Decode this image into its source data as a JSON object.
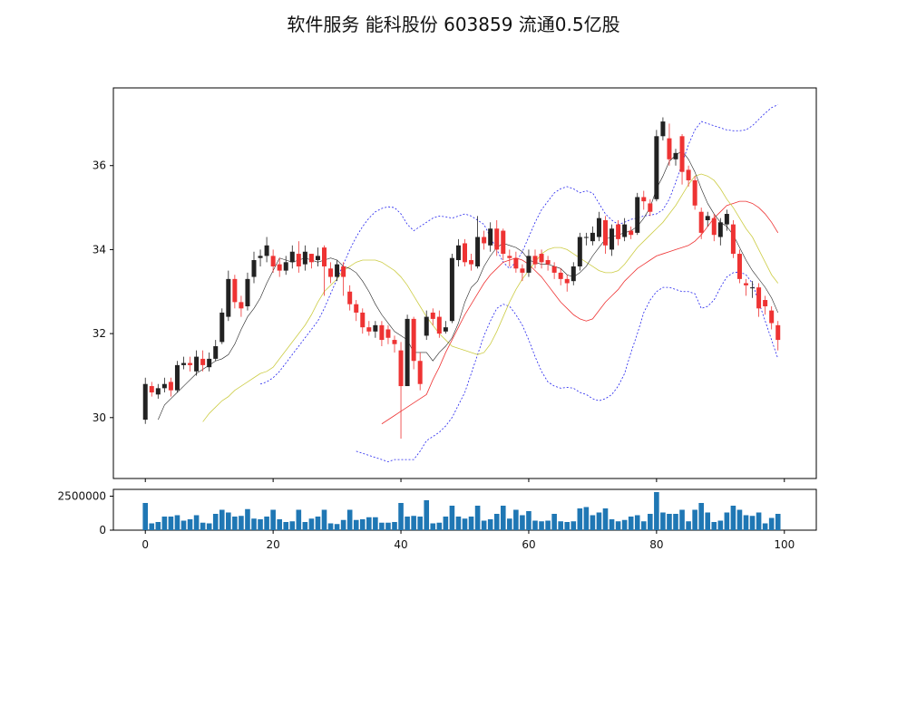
{
  "chart_data": [
    {
      "type": "candlestick",
      "panel": "price",
      "title": "软件服务 能科股份 603859 流通0.5亿股",
      "xlim": [
        -5,
        105
      ],
      "ylim": [
        28.55,
        37.85
      ],
      "x_ticks": [
        0,
        20,
        40,
        60,
        80,
        100
      ],
      "y_ticks": [
        30,
        32,
        34,
        36
      ],
      "colors": {
        "up": "#222222",
        "down": "#ee3333",
        "ma5": "#222222",
        "ma10": "#cccc44",
        "ma20": "#ee3333",
        "boll": "#2222ee"
      },
      "ohlc": [
        [
          0,
          29.95,
          30.8,
          30.95,
          29.85
        ],
        [
          1,
          30.75,
          30.6,
          30.85,
          30.5
        ],
        [
          2,
          30.55,
          30.7,
          30.8,
          30.45
        ],
        [
          3,
          30.7,
          30.8,
          30.95,
          30.6
        ],
        [
          4,
          30.85,
          30.65,
          30.95,
          30.5
        ],
        [
          5,
          30.65,
          31.25,
          31.35,
          30.6
        ],
        [
          6,
          31.25,
          31.3,
          31.45,
          31.15
        ],
        [
          7,
          31.3,
          31.25,
          31.45,
          31.1
        ],
        [
          8,
          31.1,
          31.45,
          31.6,
          31.0
        ],
        [
          9,
          31.4,
          31.25,
          31.6,
          31.1
        ],
        [
          10,
          31.2,
          31.4,
          31.55,
          31.1
        ],
        [
          11,
          31.4,
          31.7,
          31.85,
          31.35
        ],
        [
          12,
          31.8,
          32.5,
          32.6,
          31.75
        ],
        [
          13,
          32.4,
          33.3,
          33.5,
          32.3
        ],
        [
          14,
          33.3,
          32.75,
          33.4,
          32.6
        ],
        [
          15,
          32.75,
          32.6,
          32.9,
          32.4
        ],
        [
          16,
          32.65,
          33.3,
          33.45,
          32.55
        ],
        [
          17,
          33.35,
          33.75,
          33.95,
          33.2
        ],
        [
          18,
          33.8,
          33.85,
          34.0,
          33.6
        ],
        [
          19,
          33.85,
          34.1,
          34.3,
          33.7
        ],
        [
          20,
          33.85,
          33.6,
          34.0,
          33.45
        ],
        [
          21,
          33.65,
          33.5,
          33.8,
          33.35
        ],
        [
          22,
          33.5,
          33.7,
          33.85,
          33.4
        ],
        [
          23,
          33.7,
          33.95,
          34.1,
          33.55
        ],
        [
          24,
          33.9,
          33.6,
          34.2,
          33.45
        ],
        [
          25,
          33.65,
          33.95,
          34.1,
          33.5
        ],
        [
          26,
          33.9,
          33.7,
          33.9,
          33.55
        ],
        [
          27,
          33.75,
          33.85,
          34.05,
          33.6
        ],
        [
          28,
          34.05,
          33.6,
          34.1,
          32.9
        ],
        [
          29,
          33.55,
          33.35,
          33.7,
          33.2
        ],
        [
          30,
          33.35,
          33.65,
          33.75,
          33.25
        ],
        [
          31,
          33.6,
          33.35,
          33.7,
          32.9
        ],
        [
          32,
          33.0,
          32.7,
          33.15,
          32.55
        ],
        [
          33,
          32.7,
          32.5,
          32.8,
          32.3
        ],
        [
          34,
          32.5,
          32.15,
          32.6,
          32.0
        ],
        [
          35,
          32.15,
          32.05,
          32.3,
          31.95
        ],
        [
          36,
          32.05,
          32.2,
          32.3,
          31.9
        ],
        [
          37,
          32.2,
          31.85,
          32.3,
          31.7
        ],
        [
          38,
          32.1,
          31.9,
          32.2,
          31.75
        ],
        [
          39,
          31.85,
          31.75,
          31.95,
          31.55
        ],
        [
          40,
          31.6,
          30.75,
          31.8,
          29.5
        ],
        [
          41,
          30.75,
          32.35,
          32.45,
          30.75
        ],
        [
          42,
          32.35,
          31.35,
          32.4,
          31.15
        ],
        [
          43,
          31.35,
          30.8,
          31.55,
          30.65
        ],
        [
          44,
          31.95,
          32.4,
          32.55,
          31.85
        ],
        [
          45,
          32.5,
          32.35,
          32.6,
          32.2
        ],
        [
          46,
          32.4,
          32.0,
          32.55,
          31.9
        ],
        [
          47,
          32.05,
          32.15,
          32.3,
          32.0
        ],
        [
          48,
          32.3,
          33.8,
          33.9,
          32.25
        ],
        [
          49,
          33.75,
          34.1,
          34.25,
          33.6
        ],
        [
          50,
          34.15,
          33.7,
          34.25,
          33.6
        ],
        [
          51,
          33.75,
          33.65,
          33.9,
          33.5
        ],
        [
          52,
          33.6,
          34.3,
          34.8,
          33.55
        ],
        [
          53,
          34.3,
          34.15,
          34.45,
          34.0
        ],
        [
          54,
          34.1,
          34.5,
          34.65,
          33.95
        ],
        [
          55,
          34.5,
          34.0,
          34.7,
          33.85
        ],
        [
          56,
          34.45,
          33.9,
          34.5,
          33.75
        ],
        [
          57,
          33.85,
          33.8,
          34.0,
          33.6
        ],
        [
          58,
          33.8,
          33.55,
          33.95,
          33.45
        ],
        [
          59,
          33.55,
          33.45,
          33.65,
          33.25
        ],
        [
          60,
          33.45,
          33.85,
          34.0,
          33.35
        ],
        [
          61,
          33.85,
          33.65,
          34.0,
          33.55
        ],
        [
          62,
          33.9,
          33.7,
          34.0,
          33.55
        ],
        [
          63,
          33.75,
          33.65,
          33.85,
          33.5
        ],
        [
          64,
          33.6,
          33.45,
          33.7,
          33.3
        ],
        [
          65,
          33.45,
          33.3,
          33.55,
          33.15
        ],
        [
          66,
          33.3,
          33.2,
          33.4,
          33.0
        ],
        [
          67,
          33.25,
          33.6,
          33.7,
          33.15
        ],
        [
          68,
          33.6,
          34.3,
          34.4,
          33.5
        ],
        [
          69,
          34.3,
          34.3,
          34.4,
          34.1
        ],
        [
          70,
          34.2,
          34.4,
          34.55,
          34.1
        ],
        [
          71,
          34.3,
          34.75,
          34.9,
          34.2
        ],
        [
          72,
          34.7,
          34.1,
          34.8,
          33.9
        ],
        [
          73,
          34.0,
          34.5,
          34.6,
          33.85
        ],
        [
          74,
          34.6,
          34.25,
          34.7,
          34.1
        ],
        [
          75,
          34.3,
          34.6,
          34.75,
          34.2
        ],
        [
          76,
          34.45,
          34.35,
          34.55,
          34.25
        ],
        [
          77,
          34.4,
          35.25,
          35.35,
          34.35
        ],
        [
          78,
          35.25,
          35.15,
          35.4,
          34.95
        ],
        [
          79,
          35.1,
          34.9,
          35.2,
          34.8
        ],
        [
          80,
          35.2,
          36.7,
          36.85,
          35.15
        ],
        [
          81,
          36.7,
          37.05,
          37.15,
          36.6
        ],
        [
          82,
          36.65,
          36.15,
          37.0,
          36.0
        ],
        [
          83,
          36.15,
          36.3,
          36.4,
          36.0
        ],
        [
          84,
          36.7,
          35.85,
          36.75,
          35.55
        ],
        [
          85,
          35.9,
          35.65,
          36.0,
          35.5
        ],
        [
          86,
          35.65,
          35.05,
          35.75,
          34.95
        ],
        [
          87,
          34.9,
          34.4,
          35.0,
          34.25
        ],
        [
          88,
          34.7,
          34.8,
          34.9,
          34.55
        ],
        [
          89,
          34.75,
          34.35,
          34.85,
          34.2
        ],
        [
          90,
          34.3,
          34.65,
          34.75,
          34.1
        ],
        [
          91,
          34.6,
          34.85,
          34.95,
          34.45
        ],
        [
          92,
          34.6,
          33.9,
          34.7,
          33.8
        ],
        [
          93,
          33.9,
          33.3,
          34.0,
          33.2
        ],
        [
          94,
          33.2,
          33.15,
          33.3,
          32.9
        ],
        [
          95,
          33.1,
          33.1,
          33.25,
          32.85
        ],
        [
          96,
          33.1,
          32.6,
          33.2,
          32.4
        ],
        [
          97,
          32.8,
          32.65,
          32.9,
          32.45
        ],
        [
          98,
          32.55,
          32.25,
          32.65,
          32.1
        ],
        [
          99,
          32.2,
          31.85,
          32.3,
          31.6
        ]
      ],
      "ma5": [
        29.95,
        30.3,
        30.45,
        30.6,
        30.75,
        30.9,
        31.05,
        31.15,
        31.25,
        31.35,
        31.4,
        31.5,
        31.75,
        32.1,
        32.4,
        32.6,
        32.85,
        33.2,
        33.5,
        33.8,
        33.75,
        33.7,
        33.75,
        33.8,
        33.75,
        33.7,
        33.75,
        33.8,
        33.75,
        33.6,
        33.55,
        33.45,
        33.25,
        33.0,
        32.7,
        32.45,
        32.25,
        32.05,
        31.95,
        31.85,
        31.55,
        31.55,
        31.55,
        31.35,
        31.55,
        31.7,
        31.9,
        32.25,
        32.75,
        33.1,
        33.25,
        33.6,
        33.85,
        34.05,
        34.15,
        34.1,
        34.05,
        33.95,
        33.75,
        33.7,
        33.65,
        33.65,
        33.6,
        33.55,
        33.4,
        33.35,
        33.45,
        33.6,
        33.85,
        34.05,
        34.25,
        34.3,
        34.35,
        34.4,
        34.45,
        34.55,
        34.75,
        35.0,
        35.45,
        35.75,
        36.1,
        36.25,
        36.35,
        36.15,
        35.85,
        35.45,
        35.1,
        34.85,
        34.65,
        34.55,
        34.35,
        34.05,
        33.75,
        33.5,
        33.3,
        33.1,
        32.85,
        32.5
      ],
      "ma10": [
        29.9,
        30.1,
        30.25,
        30.4,
        30.5,
        30.65,
        30.75,
        30.85,
        30.95,
        31.05,
        31.1,
        31.2,
        31.4,
        31.6,
        31.8,
        32.0,
        32.2,
        32.45,
        32.75,
        33.0,
        33.15,
        33.3,
        33.5,
        33.6,
        33.7,
        33.75,
        33.75,
        33.75,
        33.7,
        33.6,
        33.5,
        33.35,
        33.15,
        32.9,
        32.65,
        32.4,
        32.2,
        32.0,
        31.85,
        31.7,
        31.65,
        31.6,
        31.55,
        31.5,
        31.55,
        31.75,
        32.05,
        32.4,
        32.75,
        33.05,
        33.3,
        33.5,
        33.7,
        33.9,
        34.0,
        34.05,
        34.05,
        34.0,
        33.9,
        33.8,
        33.7,
        33.6,
        33.5,
        33.45,
        33.45,
        33.5,
        33.65,
        33.85,
        34.05,
        34.2,
        34.35,
        34.5,
        34.65,
        34.85,
        35.05,
        35.3,
        35.55,
        35.75,
        35.8,
        35.75,
        35.65,
        35.45,
        35.2,
        35.0,
        34.75,
        34.5,
        34.3,
        34.0,
        33.7,
        33.4,
        33.2
      ],
      "ma20": [
        29.85,
        29.95,
        30.05,
        30.15,
        30.25,
        30.35,
        30.45,
        30.55,
        30.9,
        31.2,
        31.55,
        31.85,
        32.15,
        32.45,
        32.7,
        32.95,
        33.2,
        33.4,
        33.55,
        33.7,
        33.75,
        33.8,
        33.75,
        33.65,
        33.5,
        33.35,
        33.15,
        32.95,
        32.75,
        32.6,
        32.45,
        32.35,
        32.3,
        32.35,
        32.55,
        32.75,
        32.9,
        33.05,
        33.25,
        33.4,
        33.55,
        33.65,
        33.75,
        33.85,
        33.9,
        33.95,
        34.0,
        34.05,
        34.1,
        34.2,
        34.35,
        34.55,
        34.75,
        34.9,
        35.05,
        35.1,
        35.15,
        35.15,
        35.1,
        35.0,
        34.85,
        34.65,
        34.4
      ],
      "boll_upper": [
        30.8,
        30.85,
        30.95,
        31.1,
        31.3,
        31.5,
        31.7,
        31.9,
        32.1,
        32.3,
        32.6,
        32.95,
        33.3,
        33.65,
        34.0,
        34.3,
        34.55,
        34.75,
        34.9,
        34.98,
        35.02,
        35.0,
        34.85,
        34.6,
        34.45,
        34.55,
        34.65,
        34.75,
        34.8,
        34.78,
        34.75,
        34.8,
        34.85,
        34.8,
        34.7,
        34.6,
        34.3,
        34.0,
        33.7,
        33.55,
        33.7,
        33.95,
        34.3,
        34.65,
        34.95,
        35.15,
        35.35,
        35.45,
        35.5,
        35.45,
        35.35,
        35.4,
        35.35,
        35.1,
        34.85,
        34.7,
        34.6,
        34.65,
        34.72,
        34.75,
        34.8,
        34.82,
        34.85,
        34.95,
        35.2,
        35.6,
        36.05,
        36.5,
        36.85,
        37.05,
        37.0,
        36.95,
        36.9,
        36.85,
        36.83,
        36.83,
        36.85,
        36.95,
        37.1,
        37.25,
        37.38,
        37.45
      ],
      "boll_lower": [
        29.2,
        29.15,
        29.1,
        29.05,
        29.0,
        28.95,
        29.0,
        29.0,
        29.0,
        29.0,
        29.2,
        29.45,
        29.55,
        29.65,
        29.8,
        30.0,
        30.3,
        30.6,
        31.05,
        31.5,
        31.95,
        32.3,
        32.6,
        32.7,
        32.65,
        32.45,
        32.2,
        31.85,
        31.45,
        31.1,
        30.85,
        30.75,
        30.7,
        30.72,
        30.7,
        30.6,
        30.55,
        30.45,
        30.4,
        30.45,
        30.55,
        30.75,
        31.05,
        31.55,
        32.0,
        32.5,
        32.8,
        33.0,
        33.1,
        33.1,
        33.05,
        33.0,
        33.0,
        32.95,
        32.6,
        32.65,
        32.8,
        33.1,
        33.35,
        33.45,
        33.47,
        33.4,
        33.2,
        32.75,
        32.3,
        31.85,
        31.4
      ]
    },
    {
      "type": "bar",
      "panel": "volume",
      "xlim": [
        -5,
        105
      ],
      "ylim": [
        0,
        3000000
      ],
      "x_ticks": [
        0,
        20,
        40,
        60,
        80,
        100
      ],
      "y_ticks": [
        0,
        2500000
      ],
      "color": "#1f77b4",
      "values": [
        2000000,
        500000,
        600000,
        1000000,
        1000000,
        1100000,
        700000,
        800000,
        1100000,
        550000,
        500000,
        1200000,
        1500000,
        1300000,
        1000000,
        1050000,
        1550000,
        850000,
        800000,
        1000000,
        1500000,
        800000,
        600000,
        650000,
        1500000,
        600000,
        850000,
        1000000,
        1500000,
        500000,
        450000,
        750000,
        1500000,
        750000,
        800000,
        950000,
        950000,
        550000,
        550000,
        600000,
        2000000,
        1000000,
        1050000,
        1000000,
        2200000,
        500000,
        550000,
        1000000,
        1800000,
        1000000,
        850000,
        1000000,
        1800000,
        700000,
        800000,
        1200000,
        1800000,
        850000,
        1500000,
        1100000,
        1400000,
        700000,
        650000,
        700000,
        1200000,
        650000,
        600000,
        650000,
        1600000,
        1700000,
        1100000,
        1300000,
        1600000,
        800000,
        650000,
        750000,
        1000000,
        1100000,
        650000,
        1200000,
        2800000,
        1300000,
        1200000,
        1200000,
        1500000,
        650000,
        1500000,
        2000000,
        1300000,
        600000,
        700000,
        1300000,
        1800000,
        1500000,
        1100000,
        1050000,
        1300000,
        500000,
        900000,
        1200000
      ]
    }
  ]
}
